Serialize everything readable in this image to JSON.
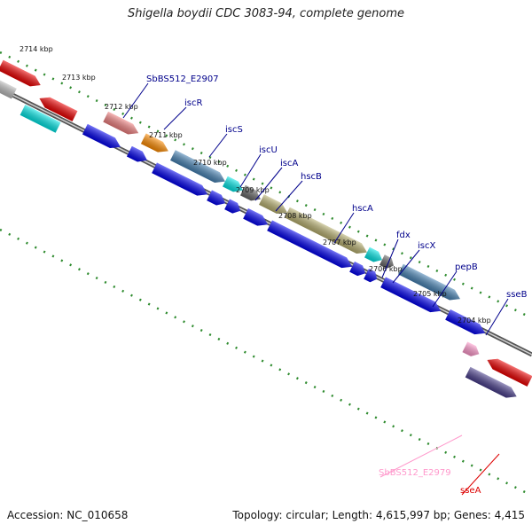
{
  "title": "Shigella boydii CDC 3083-94, complete genome",
  "accession": "Accession: NC_010658",
  "topology": "Topology: circular; Length: 4,615,997 bp; Genes: 4,415",
  "ticks": [
    "2714 kbp",
    "2713 kbp",
    "2712 kbp",
    "2711 kbp",
    "2710 kbp",
    "2709 kbp",
    "2708 kbp",
    "2707 kbp",
    "2706 kbp",
    "2705 kbp",
    "2704 kbp"
  ],
  "genes": [
    {
      "label": "SbBS512_E2907",
      "color": "#00008b"
    },
    {
      "label": "iscR",
      "color": "#00008b"
    },
    {
      "label": "iscS",
      "color": "#00008b"
    },
    {
      "label": "iscU",
      "color": "#00008b"
    },
    {
      "label": "iscA",
      "color": "#00008b"
    },
    {
      "label": "hscB",
      "color": "#00008b"
    },
    {
      "label": "hscA",
      "color": "#00008b"
    },
    {
      "label": "fdx",
      "color": "#00008b"
    },
    {
      "label": "iscX",
      "color": "#00008b"
    },
    {
      "label": "pepB",
      "color": "#00008b"
    },
    {
      "label": "sseB",
      "color": "#00008b"
    },
    {
      "label": "SbBS512_E2979",
      "color": "#ff99cc"
    },
    {
      "label": "sseA",
      "color": "#dd0000"
    }
  ],
  "colors": {
    "backbone": "#888888",
    "cds": "#0000ee",
    "tick_dots": "#2e8b2e",
    "orange": "#ff8c00",
    "salmon": "#f08080",
    "steelblue": "#4682b4",
    "cyan": "#00e5e5",
    "gray": "#666666",
    "olive": "#b8b070",
    "red": "#ee0000",
    "pink": "#ff99cc",
    "slate": "#483d8b",
    "lightgray": "#bbbbbb"
  }
}
